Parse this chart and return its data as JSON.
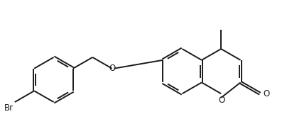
{
  "bg_color": "#ffffff",
  "line_color": "#1a1a1a",
  "line_width": 1.4,
  "font_size": 8.5,
  "br_label": "Br",
  "o_ether": "O",
  "o_ring": "O",
  "o_carbonyl": "O",
  "methyl_label": ""
}
